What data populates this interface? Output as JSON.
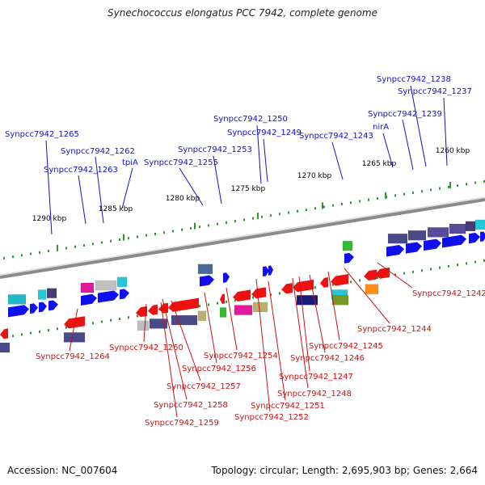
{
  "title": "Synechococcus elongatus PCC 7942, complete genome",
  "footer": {
    "accession": "Accession: NC_007604",
    "topology": "Topology: circular; Length: 2,695,903 bp; Genes: 2,664"
  },
  "colors": {
    "forward_label": "#1010cc",
    "reverse_label": "#cc1111",
    "backbone": "#888888",
    "tick": "#2a9a2a",
    "kbp_label": "#111111"
  },
  "kbp_ticks": [
    "1260 kbp",
    "1265 kbp",
    "1270 kbp",
    "1275 kbp",
    "1280 kbp",
    "1285 kbp",
    "1290 kbp"
  ],
  "forward_labels": [
    "Synpcc7942_1238",
    "Synpcc7942_1237",
    "Synpcc7942_1239",
    "nirA",
    "Synpcc7942_1243",
    "Synpcc7942_1250",
    "Synpcc7942_1249",
    "Synpcc7942_1253",
    "Synpcc7942_1255",
    "tpiA",
    "Synpcc7942_1262",
    "Synpcc7942_1263",
    "Synpcc7942_1265"
  ],
  "reverse_labels": [
    "Synpcc7942_1242",
    "Synpcc7942_1244",
    "Synpcc7942_1245",
    "Synpcc7942_1246",
    "Synpcc7942_1247",
    "Synpcc7942_1248",
    "Synpcc7942_1251",
    "Synpcc7942_1252",
    "Synpcc7942_1254",
    "Synpcc7942_1256",
    "Synpcc7942_1257",
    "Synpcc7942_1258",
    "Synpcc7942_1259",
    "Synpcc7942_1260",
    "Synpcc7942_1264"
  ]
}
